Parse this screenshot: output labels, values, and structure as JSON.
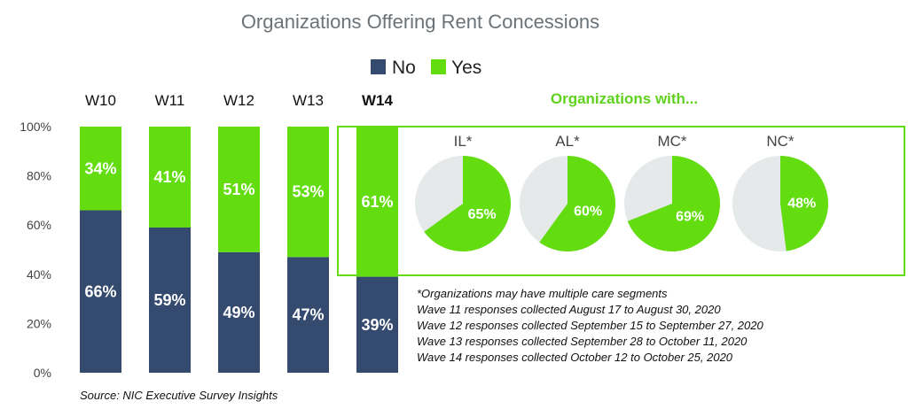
{
  "chart_data": [
    {
      "type": "bar",
      "title": "Organizations Offering Rent Concessions",
      "categories": [
        "W10",
        "W11",
        "W12",
        "W13",
        "W14"
      ],
      "highlight_category": "W14",
      "series": [
        {
          "name": "No",
          "values": [
            66,
            59,
            49,
            47,
            39
          ],
          "labels": [
            "66%",
            "59%",
            "49%",
            "47%",
            "39%"
          ]
        },
        {
          "name": "Yes",
          "values": [
            34,
            41,
            51,
            53,
            61
          ],
          "labels": [
            "34%",
            "41%",
            "51%",
            "53%",
            "61%"
          ]
        }
      ],
      "stacked": true,
      "ylim": [
        0,
        100
      ],
      "yticks": [
        "0%",
        "20%",
        "40%",
        "60%",
        "80%",
        "100%"
      ],
      "legend_position": "top",
      "grid": false
    },
    {
      "type": "pie",
      "title": "Organizations with...",
      "pies": [
        {
          "label": "IL*",
          "yes": 65,
          "text": "65%"
        },
        {
          "label": "AL*",
          "yes": 60,
          "text": "60%"
        },
        {
          "label": "MC*",
          "yes": 69,
          "text": "69%"
        },
        {
          "label": "NC*",
          "yes": 48,
          "text": "48%"
        }
      ]
    }
  ],
  "colors": {
    "no": "#344a6e",
    "yes": "#63dc10",
    "remainder": "#e6e9e9",
    "title": "#6b7378",
    "highlight": "#5fd21e"
  },
  "notes": [
    "*Organizations may have multiple care segments",
    "Wave 11 responses collected August 17 to August 30, 2020",
    "Wave 12 responses collected September 15 to September 27, 2020",
    "Wave 13 responses collected September 28 to October 11, 2020",
    "Wave 14 responses collected October 12 to October 25, 2020"
  ],
  "source": "Source: NIC Executive Survey Insights"
}
